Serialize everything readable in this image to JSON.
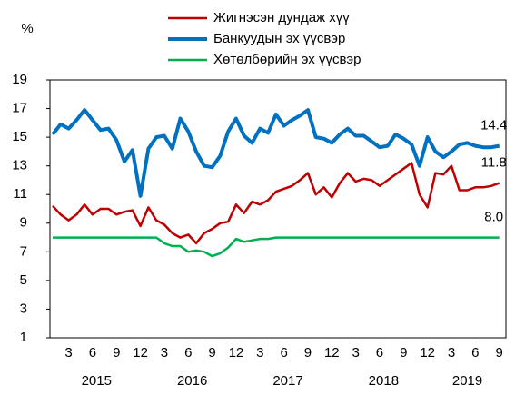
{
  "chart_data": {
    "type": "line",
    "y_label": "%",
    "categories": [
      null,
      null,
      "3",
      null,
      null,
      "6",
      null,
      null,
      "9",
      null,
      null,
      "12",
      null,
      null,
      "3",
      null,
      null,
      "6",
      null,
      null,
      "9",
      null,
      null,
      "12",
      null,
      null,
      "3",
      null,
      null,
      "6",
      null,
      null,
      "9",
      null,
      null,
      "12",
      null,
      null,
      "3",
      null,
      null,
      "6",
      null,
      null,
      "9",
      null,
      null,
      "12",
      null,
      null,
      "3",
      null,
      null,
      "6",
      null,
      null,
      "9"
    ],
    "year_labels": [
      "2015",
      "2016",
      "2017",
      "2018",
      "2019"
    ],
    "ylim": [
      1,
      19
    ],
    "yticks": [
      1,
      3,
      5,
      7,
      9,
      11,
      13,
      15,
      17,
      19
    ],
    "series": [
      {
        "name": "Жигнэсэн дундаж хүү",
        "color": "#c00000",
        "values": [
          10.2,
          9.6,
          9.2,
          9.6,
          10.3,
          9.6,
          10.0,
          10.0,
          9.6,
          9.8,
          9.9,
          8.8,
          10.1,
          9.2,
          8.9,
          8.3,
          8.0,
          8.2,
          7.6,
          8.3,
          8.6,
          9.0,
          9.1,
          10.3,
          9.7,
          10.5,
          10.3,
          10.6,
          11.2,
          11.4,
          11.6,
          12.0,
          12.5,
          11.0,
          11.5,
          10.8,
          11.8,
          12.5,
          11.9,
          12.1,
          12.0,
          11.6,
          12.0,
          12.4,
          12.8,
          13.2,
          11.0,
          10.1,
          12.5,
          12.4,
          13.0,
          11.3,
          11.3,
          11.5,
          11.5,
          11.6,
          11.8
        ],
        "value_labels": [
          null,
          null,
          null,
          null,
          null,
          null,
          null,
          null,
          null,
          null,
          null,
          null,
          null,
          null,
          null,
          null,
          null,
          null,
          null,
          null,
          null,
          null,
          null,
          null,
          null,
          null,
          null,
          null,
          null,
          null,
          null,
          null,
          null,
          null,
          null,
          null,
          null,
          null,
          null,
          null,
          null,
          null,
          null,
          null,
          null,
          null,
          null,
          null,
          null,
          null,
          null,
          null,
          null,
          null,
          null,
          null,
          "11.8"
        ]
      },
      {
        "name": "Банкуудын эх үүсвэр",
        "color": "#0070c0",
        "values": [
          15.2,
          15.9,
          15.6,
          16.2,
          16.9,
          16.2,
          15.5,
          15.6,
          14.8,
          13.3,
          14.1,
          10.9,
          14.2,
          15.0,
          15.1,
          14.2,
          16.3,
          15.4,
          14.0,
          13.0,
          12.9,
          13.7,
          15.4,
          16.3,
          15.1,
          14.6,
          15.6,
          15.3,
          16.6,
          15.8,
          16.2,
          16.5,
          16.9,
          15.0,
          14.9,
          14.6,
          15.2,
          15.6,
          15.1,
          15.1,
          14.7,
          14.3,
          14.4,
          15.2,
          14.9,
          14.5,
          13.0,
          15.0,
          14.0,
          13.6,
          14.0,
          14.5,
          14.6,
          14.4,
          14.3,
          14.3,
          14.4
        ],
        "value_labels": [
          null,
          null,
          null,
          null,
          null,
          null,
          null,
          null,
          null,
          null,
          null,
          null,
          null,
          null,
          null,
          null,
          null,
          null,
          null,
          null,
          null,
          null,
          null,
          null,
          null,
          null,
          null,
          null,
          null,
          null,
          null,
          null,
          null,
          null,
          null,
          null,
          null,
          null,
          null,
          null,
          null,
          null,
          null,
          null,
          null,
          null,
          null,
          null,
          null,
          null,
          null,
          null,
          null,
          null,
          null,
          null,
          "14.4"
        ]
      },
      {
        "name": "Хөтөлбөрийн эх үүсвэр",
        "color": "#00b050",
        "values": [
          8.0,
          8.0,
          8.0,
          8.0,
          8.0,
          8.0,
          8.0,
          8.0,
          8.0,
          8.0,
          8.0,
          8.0,
          8.0,
          8.0,
          7.6,
          7.4,
          7.4,
          7.0,
          7.1,
          7.0,
          6.7,
          6.9,
          7.3,
          7.9,
          7.7,
          7.8,
          7.9,
          7.9,
          8.0,
          8.0,
          8.0,
          8.0,
          8.0,
          8.0,
          8.0,
          8.0,
          8.0,
          8.0,
          8.0,
          8.0,
          8.0,
          8.0,
          8.0,
          8.0,
          8.0,
          8.0,
          8.0,
          8.0,
          8.0,
          8.0,
          8.0,
          8.0,
          8.0,
          8.0,
          8.0,
          8.0,
          8.0
        ],
        "value_labels": [
          null,
          null,
          null,
          null,
          null,
          null,
          null,
          null,
          null,
          null,
          null,
          null,
          null,
          null,
          null,
          null,
          null,
          null,
          null,
          null,
          null,
          null,
          null,
          null,
          null,
          null,
          null,
          null,
          null,
          null,
          null,
          null,
          null,
          null,
          null,
          null,
          null,
          null,
          null,
          null,
          null,
          null,
          null,
          null,
          null,
          null,
          null,
          null,
          null,
          null,
          null,
          null,
          null,
          null,
          null,
          null,
          "8.0"
        ]
      }
    ]
  }
}
